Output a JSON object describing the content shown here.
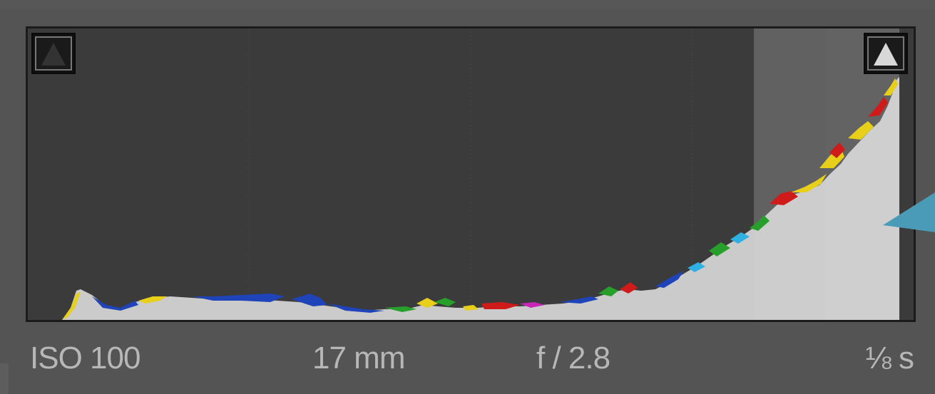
{
  "histogram": {
    "panel_name": "",
    "shadow_clip_warning": {
      "icon": "triangle-up-icon",
      "color": "#333333"
    },
    "highlight_clip_warning": {
      "icon": "triangle-up-icon",
      "color": "#d8d8d8"
    },
    "colors": {
      "background": "#3b3b3b",
      "fill": "#cbcbcb",
      "blue": "#1f43b8",
      "yellow": "#e7cf1a",
      "red": "#d01b1b",
      "green": "#27a02b",
      "cyan": "#2fb0e3",
      "magenta": "#c627b6"
    }
  },
  "exif": {
    "iso": "ISO 100",
    "focal_length": "17 mm",
    "aperture": "f / 2.8",
    "shutter": "⅛ s"
  },
  "pointer": {
    "icon": "arrow-pointer-icon",
    "color": "#4a9bb8"
  }
}
